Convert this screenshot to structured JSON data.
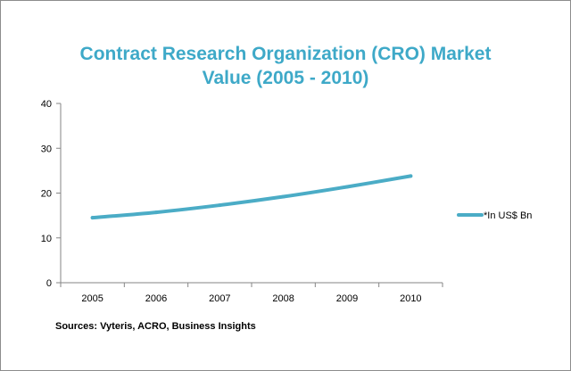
{
  "chart_data": {
    "type": "line",
    "title_lines": [
      "Contract Research Organization (CRO) Market",
      "Value (2005 - 2010)"
    ],
    "categories": [
      "2005",
      "2006",
      "2007",
      "2008",
      "2009",
      "2010"
    ],
    "series": [
      {
        "name": "*In US$ Bn",
        "values": [
          14.5,
          15.7,
          17.3,
          19.2,
          21.4,
          23.8
        ],
        "color": "#4bacc6"
      }
    ],
    "ylim": [
      0,
      40
    ],
    "yticks": [
      "0",
      "10",
      "20",
      "30",
      "40"
    ],
    "grid": false,
    "legend_position": "right",
    "source": "Sources: Vyteris, ACRO, Business Insights"
  }
}
